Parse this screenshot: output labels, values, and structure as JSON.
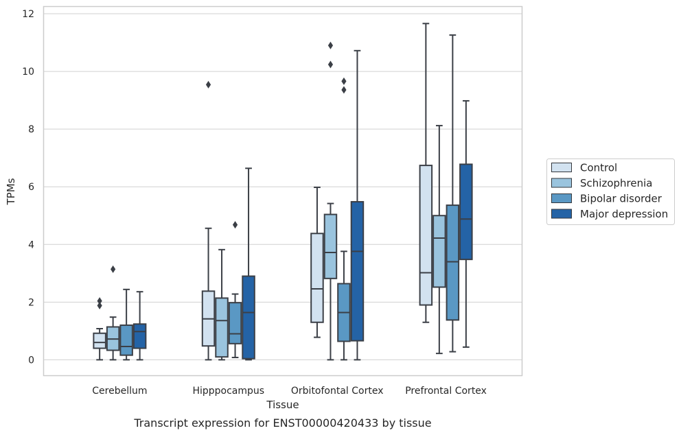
{
  "chart_data": {
    "type": "box",
    "caption": "Transcript expression for ENST00000420433 by tissue",
    "xlabel": "Tissue",
    "ylabel": "TPMs",
    "ylim": [
      -0.55,
      12.25
    ],
    "yticks": [
      0,
      2,
      4,
      6,
      8,
      10,
      12
    ],
    "grid": "horizontal",
    "legend_position": "right",
    "categories": [
      "Cerebellum",
      "Hipppocampus",
      "Orbitofontal Cortex",
      "Prefrontal Cortex"
    ],
    "series": [
      {
        "name": "Control",
        "color": "#d2e2f0",
        "boxes": [
          {
            "whisker_low": 0.0,
            "q1": 0.4,
            "median": 0.6,
            "q3": 0.92,
            "whisker_high": 1.08,
            "outliers": [
              1.88,
              2.04
            ]
          },
          {
            "whisker_low": 0.0,
            "q1": 0.48,
            "median": 1.42,
            "q3": 2.38,
            "whisker_high": 4.56,
            "outliers": [
              9.54
            ]
          },
          {
            "whisker_low": 0.78,
            "q1": 1.3,
            "median": 2.46,
            "q3": 4.38,
            "whisker_high": 5.98,
            "outliers": []
          },
          {
            "whisker_low": 1.3,
            "q1": 1.9,
            "median": 3.02,
            "q3": 6.74,
            "whisker_high": 11.66,
            "outliers": []
          }
        ]
      },
      {
        "name": "Schizophrenia",
        "color": "#9ac4de",
        "boxes": [
          {
            "whisker_low": 0.0,
            "q1": 0.33,
            "median": 0.72,
            "q3": 1.14,
            "whisker_high": 1.48,
            "outliers": [
              3.14
            ]
          },
          {
            "whisker_low": 0.0,
            "q1": 0.1,
            "median": 1.36,
            "q3": 2.14,
            "whisker_high": 3.82,
            "outliers": []
          },
          {
            "whisker_low": 0.0,
            "q1": 2.82,
            "median": 3.72,
            "q3": 5.04,
            "whisker_high": 5.42,
            "outliers": [
              10.24,
              10.9
            ]
          },
          {
            "whisker_low": 0.22,
            "q1": 2.52,
            "median": 4.22,
            "q3": 5.0,
            "whisker_high": 8.12,
            "outliers": []
          }
        ]
      },
      {
        "name": "Bipolar disorder",
        "color": "#5a98c4",
        "boxes": [
          {
            "whisker_low": 0.0,
            "q1": 0.16,
            "median": 0.46,
            "q3": 1.2,
            "whisker_high": 2.44,
            "outliers": []
          },
          {
            "whisker_low": 0.08,
            "q1": 0.56,
            "median": 0.9,
            "q3": 1.98,
            "whisker_high": 2.28,
            "outliers": [
              4.68
            ]
          },
          {
            "whisker_low": 0.0,
            "q1": 0.64,
            "median": 1.64,
            "q3": 2.64,
            "whisker_high": 3.76,
            "outliers": [
              9.36,
              9.66
            ]
          },
          {
            "whisker_low": 0.28,
            "q1": 1.38,
            "median": 3.4,
            "q3": 5.36,
            "whisker_high": 11.26,
            "outliers": []
          }
        ]
      },
      {
        "name": "Major depression",
        "color": "#2463a6",
        "boxes": [
          {
            "whisker_low": 0.0,
            "q1": 0.4,
            "median": 0.98,
            "q3": 1.24,
            "whisker_high": 2.36,
            "outliers": []
          },
          {
            "whisker_low": 0.0,
            "q1": 0.04,
            "median": 1.64,
            "q3": 2.9,
            "whisker_high": 6.64,
            "outliers": []
          },
          {
            "whisker_low": 0.0,
            "q1": 0.66,
            "median": 3.76,
            "q3": 5.48,
            "whisker_high": 10.72,
            "outliers": []
          },
          {
            "whisker_low": 0.44,
            "q1": 3.48,
            "median": 4.88,
            "q3": 6.78,
            "whisker_high": 8.98,
            "outliers": []
          }
        ]
      }
    ]
  }
}
